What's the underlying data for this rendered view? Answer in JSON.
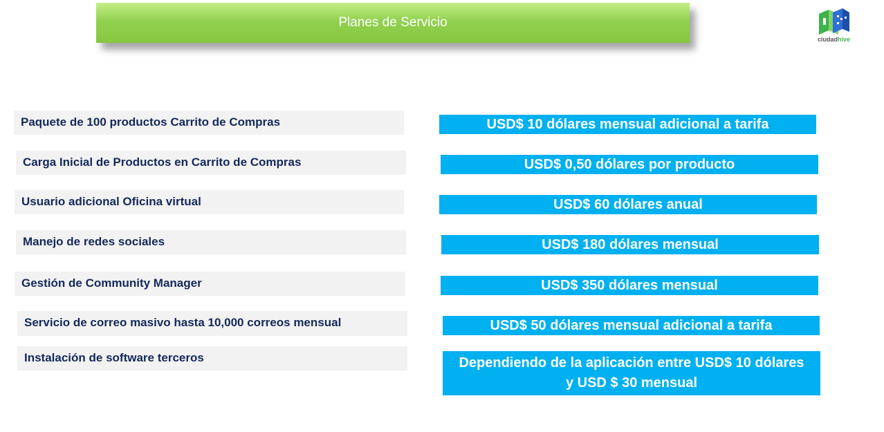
{
  "header": {
    "title": "Planes de Servicio"
  },
  "logo": {
    "text_a": "ciudad",
    "text_b": "hive"
  },
  "rows": [
    {
      "service": "Paquete de 100 productos Carrito de Compras",
      "price": [
        "USD$ 10 dólares mensual adicional a tarifa"
      ]
    },
    {
      "service": "Carga Inicial de Productos en Carrito de Compras",
      "price": [
        "USD$ 0,50 dólares por producto"
      ]
    },
    {
      "service": "Usuario adicional Oficina virtual",
      "price": [
        "USD$ 60 dólares anual"
      ]
    },
    {
      "service": "Manejo de redes sociales",
      "price": [
        "USD$ 180 dólares mensual"
      ]
    },
    {
      "service": "Gestión de Community Manager",
      "price": [
        "USD$ 350 dólares mensual"
      ]
    },
    {
      "service": "Servicio de correo masivo hasta 10,000 correos mensual",
      "price": [
        "USD$ 50 dólares mensual adicional a tarifa"
      ]
    },
    {
      "service": "Instalación de software terceros",
      "price": [
        "Dependiendo de la aplicación entre USD$ 10 dólares",
        "y USD $ 30 mensual"
      ]
    }
  ]
}
